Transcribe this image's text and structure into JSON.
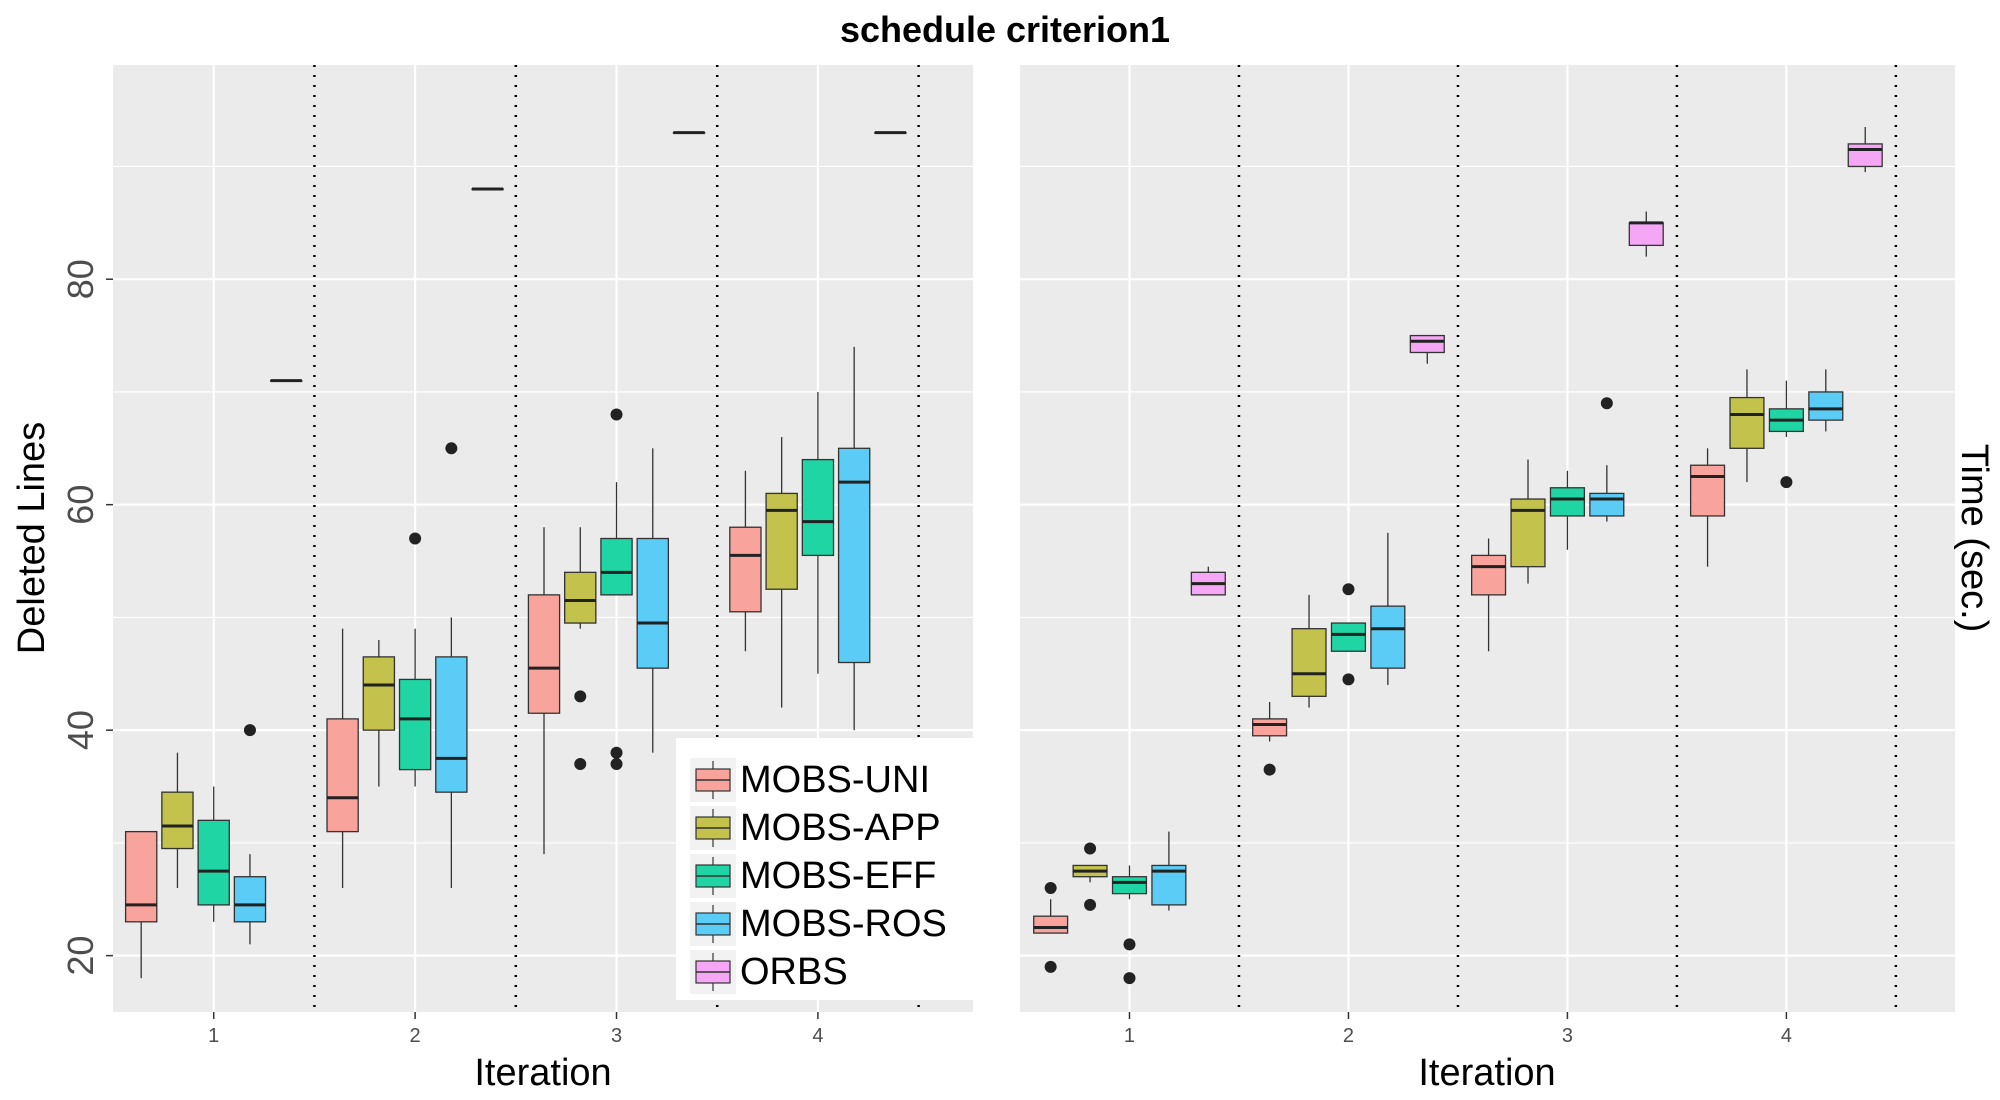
{
  "title": "schedule criterion1",
  "chart_data": [
    {
      "type": "box",
      "panel": "left",
      "xlabel": "Iteration",
      "ylabel": "Deleted Lines",
      "categories": [
        "1",
        "2",
        "3",
        "4"
      ],
      "ylim": [
        15,
        99
      ],
      "yticks": [
        20,
        40,
        60,
        80
      ],
      "grid": true,
      "series": [
        {
          "name": "MOBS-UNI",
          "color": "#F8A39B",
          "boxes": [
            {
              "min": 18,
              "q1": 23,
              "median": 24.5,
              "q3": 31,
              "max": 31,
              "outliers": []
            },
            {
              "min": 26,
              "q1": 31,
              "median": 34,
              "q3": 41,
              "max": 49,
              "outliers": []
            },
            {
              "min": 29,
              "q1": 41.5,
              "median": 45.5,
              "q3": 52,
              "max": 58,
              "outliers": []
            },
            {
              "min": 47,
              "q1": 50.5,
              "median": 55.5,
              "q3": 58,
              "max": 63,
              "outliers": []
            }
          ]
        },
        {
          "name": "MOBS-APP",
          "color": "#C2C24C",
          "boxes": [
            {
              "min": 26,
              "q1": 29.5,
              "median": 31.5,
              "q3": 34.5,
              "max": 38,
              "outliers": []
            },
            {
              "min": 35,
              "q1": 40,
              "median": 44,
              "q3": 46.5,
              "max": 48,
              "outliers": []
            },
            {
              "min": 49,
              "q1": 49.5,
              "median": 51.5,
              "q3": 54,
              "max": 58,
              "outliers": [
                43,
                37
              ]
            },
            {
              "min": 42,
              "q1": 52.5,
              "median": 59.5,
              "q3": 61,
              "max": 66,
              "outliers": []
            }
          ]
        },
        {
          "name": "MOBS-EFF",
          "color": "#1FD5A4",
          "boxes": [
            {
              "min": 23,
              "q1": 24.5,
              "median": 27.5,
              "q3": 32,
              "max": 35,
              "outliers": []
            },
            {
              "min": 35,
              "q1": 36.5,
              "median": 41,
              "q3": 44.5,
              "max": 49,
              "outliers": [
                57
              ]
            },
            {
              "min": 52,
              "q1": 52,
              "median": 54,
              "q3": 57,
              "max": 62,
              "outliers": [
                68,
                38,
                37
              ]
            },
            {
              "min": 45,
              "q1": 55.5,
              "median": 58.5,
              "q3": 64,
              "max": 70,
              "outliers": []
            }
          ]
        },
        {
          "name": "MOBS-ROS",
          "color": "#5BCCF5",
          "boxes": [
            {
              "min": 21,
              "q1": 23,
              "median": 24.5,
              "q3": 27,
              "max": 29,
              "outliers": [
                40
              ]
            },
            {
              "min": 26,
              "q1": 34.5,
              "median": 37.5,
              "q3": 46.5,
              "max": 50,
              "outliers": [
                65
              ]
            },
            {
              "min": 38,
              "q1": 45.5,
              "median": 49.5,
              "q3": 57,
              "max": 65,
              "outliers": []
            },
            {
              "min": 40,
              "q1": 46,
              "median": 62,
              "q3": 65,
              "max": 74,
              "outliers": []
            }
          ]
        },
        {
          "name": "ORBS",
          "color": "#F5A6F5",
          "boxes": [
            {
              "min": 71,
              "q1": 71,
              "median": 71,
              "q3": 71,
              "max": 71,
              "outliers": []
            },
            {
              "min": 88,
              "q1": 88,
              "median": 88,
              "q3": 88,
              "max": 88,
              "outliers": []
            },
            {
              "min": 93,
              "q1": 93,
              "median": 93,
              "q3": 93,
              "max": 93,
              "outliers": []
            },
            {
              "min": 93,
              "q1": 93,
              "median": 93,
              "q3": 93,
              "max": 93,
              "outliers": []
            }
          ]
        }
      ]
    },
    {
      "type": "box",
      "panel": "right",
      "xlabel": "Iteration",
      "ylabel": "Time (sec.)",
      "categories": [
        "1",
        "2",
        "3",
        "4"
      ],
      "ylim": [
        15,
        99
      ],
      "yticks": [],
      "grid": true,
      "series": [
        {
          "name": "MOBS-UNI",
          "color": "#F8A39B",
          "boxes": [
            {
              "min": 22,
              "q1": 22,
              "median": 22.5,
              "q3": 23.5,
              "max": 25,
              "outliers": [
                26,
                19
              ]
            },
            {
              "min": 39,
              "q1": 39.5,
              "median": 40.5,
              "q3": 41,
              "max": 42.5,
              "outliers": [
                36.5
              ]
            },
            {
              "min": 47,
              "q1": 52,
              "median": 54.5,
              "q3": 55.5,
              "max": 57,
              "outliers": []
            },
            {
              "min": 54.5,
              "q1": 59,
              "median": 62.5,
              "q3": 63.5,
              "max": 65,
              "outliers": []
            }
          ]
        },
        {
          "name": "MOBS-APP",
          "color": "#C2C24C",
          "boxes": [
            {
              "min": 26.5,
              "q1": 27,
              "median": 27.5,
              "q3": 28,
              "max": 28,
              "outliers": [
                29.5,
                24.5
              ]
            },
            {
              "min": 42,
              "q1": 43,
              "median": 45,
              "q3": 49,
              "max": 52,
              "outliers": []
            },
            {
              "min": 53,
              "q1": 54.5,
              "median": 59.5,
              "q3": 60.5,
              "max": 64,
              "outliers": []
            },
            {
              "min": 62,
              "q1": 65,
              "median": 68,
              "q3": 69.5,
              "max": 72,
              "outliers": []
            }
          ]
        },
        {
          "name": "MOBS-EFF",
          "color": "#1FD5A4",
          "boxes": [
            {
              "min": 25,
              "q1": 25.5,
              "median": 26.5,
              "q3": 27,
              "max": 28,
              "outliers": [
                21,
                18
              ]
            },
            {
              "min": 47,
              "q1": 47,
              "median": 48.5,
              "q3": 49.5,
              "max": 49.5,
              "outliers": [
                52.5,
                44.5
              ]
            },
            {
              "min": 56,
              "q1": 59,
              "median": 60.5,
              "q3": 61.5,
              "max": 63,
              "outliers": []
            },
            {
              "min": 66,
              "q1": 66.5,
              "median": 67.5,
              "q3": 68.5,
              "max": 71,
              "outliers": [
                62
              ]
            }
          ]
        },
        {
          "name": "MOBS-ROS",
          "color": "#5BCCF5",
          "boxes": [
            {
              "min": 24,
              "q1": 24.5,
              "median": 27.5,
              "q3": 28,
              "max": 31,
              "outliers": []
            },
            {
              "min": 44,
              "q1": 45.5,
              "median": 49,
              "q3": 51,
              "max": 57.5,
              "outliers": []
            },
            {
              "min": 58.5,
              "q1": 59,
              "median": 60.5,
              "q3": 61,
              "max": 63.5,
              "outliers": [
                69
              ]
            },
            {
              "min": 66.5,
              "q1": 67.5,
              "median": 68.5,
              "q3": 70,
              "max": 72,
              "outliers": []
            }
          ]
        },
        {
          "name": "ORBS",
          "color": "#F5A6F5",
          "boxes": [
            {
              "min": 52,
              "q1": 52,
              "median": 53,
              "q3": 54,
              "max": 54.5,
              "outliers": []
            },
            {
              "min": 72.5,
              "q1": 73.5,
              "median": 74.5,
              "q3": 75,
              "max": 75,
              "outliers": []
            },
            {
              "min": 82,
              "q1": 83,
              "median": 85,
              "q3": 85,
              "max": 86,
              "outliers": []
            },
            {
              "min": 89.5,
              "q1": 90,
              "median": 91.5,
              "q3": 92,
              "max": 93.5,
              "outliers": []
            }
          ]
        }
      ]
    }
  ],
  "legend": {
    "placement": "bottom-center",
    "items": [
      "MOBS-UNI",
      "MOBS-APP",
      "MOBS-EFF",
      "MOBS-ROS",
      "ORBS"
    ]
  }
}
